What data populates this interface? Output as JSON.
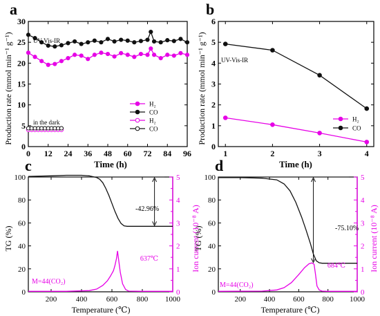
{
  "figure": {
    "panels": [
      "a",
      "b",
      "c",
      "d"
    ]
  },
  "colors": {
    "h2": "#e600e6",
    "co": "#111111",
    "ion": "#e600e6",
    "tg": "#111111",
    "axis": "#000000"
  },
  "chart_data": [
    {
      "panel": "a",
      "type": "line",
      "xlabel": "Time (h)",
      "ylabel": "Production rate (mmol min⁻¹ g⁻¹)",
      "xlim": [
        0,
        96
      ],
      "ylim": [
        0,
        30
      ],
      "xticks": [
        0,
        12,
        24,
        36,
        48,
        60,
        72,
        84,
        96
      ],
      "yticks": [
        0,
        5,
        10,
        15,
        20,
        25,
        30
      ],
      "annotations": [
        "UV-Vis-IR",
        "in the dark"
      ],
      "legend": {
        "position": "right",
        "entries": [
          {
            "label": "H₂",
            "marker": "filled-circle",
            "color": "#e600e6"
          },
          {
            "label": "CO",
            "marker": "filled-circle",
            "color": "#111111"
          },
          {
            "label": "H₂",
            "marker": "open-circle",
            "color": "#e600e6"
          },
          {
            "label": "CO",
            "marker": "open-circle",
            "color": "#111111"
          }
        ]
      },
      "series": [
        {
          "name": "CO",
          "condition": "UV-Vis-IR",
          "marker": "filled-circle",
          "color": "#111111",
          "x": [
            0,
            4,
            8,
            12,
            16,
            20,
            24,
            28,
            32,
            36,
            40,
            44,
            48,
            52,
            56,
            60,
            64,
            68,
            72,
            74,
            76,
            80,
            84,
            88,
            92,
            96
          ],
          "y": [
            26.8,
            26.0,
            25.0,
            24.2,
            24.0,
            24.3,
            24.8,
            25.2,
            24.6,
            25.0,
            25.4,
            25.0,
            25.8,
            25.2,
            25.6,
            25.4,
            25.0,
            25.3,
            25.6,
            27.5,
            25.2,
            25.0,
            25.5,
            25.3,
            25.8,
            25.0
          ]
        },
        {
          "name": "H₂",
          "condition": "UV-Vis-IR",
          "marker": "filled-circle",
          "color": "#e600e6",
          "x": [
            0,
            4,
            8,
            12,
            16,
            20,
            24,
            28,
            32,
            36,
            40,
            44,
            48,
            52,
            56,
            60,
            64,
            68,
            72,
            74,
            76,
            80,
            84,
            88,
            92,
            96
          ],
          "y": [
            22.5,
            21.5,
            20.5,
            19.6,
            19.8,
            20.5,
            21.2,
            22.0,
            21.8,
            21.0,
            22.0,
            22.5,
            22.2,
            21.6,
            22.4,
            22.0,
            21.5,
            22.2,
            22.0,
            23.5,
            22.0,
            21.2,
            22.0,
            21.8,
            22.4,
            22.0
          ]
        },
        {
          "name": "H₂",
          "condition": "in the dark",
          "marker": "open-circle",
          "color": "#e600e6",
          "x": [
            0,
            2,
            4,
            6,
            8,
            10,
            12,
            14,
            16,
            18,
            20
          ],
          "y": [
            4.0,
            4.0,
            4.0,
            4.0,
            4.0,
            4.0,
            4.0,
            4.0,
            4.0,
            4.0,
            4.0
          ]
        },
        {
          "name": "CO",
          "condition": "in the dark",
          "marker": "open-circle",
          "color": "#111111",
          "x": [
            0,
            2,
            4,
            6,
            8,
            10,
            12,
            14,
            16,
            18,
            20
          ],
          "y": [
            4.4,
            4.4,
            4.4,
            4.4,
            4.4,
            4.4,
            4.4,
            4.4,
            4.4,
            4.4,
            4.4
          ]
        }
      ]
    },
    {
      "panel": "b",
      "type": "line",
      "xlabel": "Time (h)",
      "ylabel": "Production rate (mmol min⁻¹ g⁻¹)",
      "xlim": [
        0.85,
        4.15
      ],
      "ylim": [
        0,
        6
      ],
      "xticks": [
        1,
        2,
        3,
        4
      ],
      "yticks": [
        0,
        1,
        2,
        3,
        4,
        5,
        6
      ],
      "annotations": [
        "UV-Vis-IR"
      ],
      "legend": {
        "position": "lower-right",
        "entries": [
          {
            "label": "H₂",
            "marker": "filled-circle",
            "color": "#e600e6"
          },
          {
            "label": "CO",
            "marker": "filled-circle",
            "color": "#111111"
          }
        ]
      },
      "series": [
        {
          "name": "CO",
          "marker": "filled-circle",
          "color": "#111111",
          "x": [
            1,
            2,
            3,
            4
          ],
          "y": [
            4.92,
            4.62,
            3.42,
            1.82
          ]
        },
        {
          "name": "H₂",
          "marker": "filled-circle",
          "color": "#e600e6",
          "x": [
            1,
            2,
            3,
            4
          ],
          "y": [
            1.38,
            1.05,
            0.65,
            0.22
          ]
        }
      ]
    },
    {
      "panel": "c",
      "type": "line",
      "xlabel": "Temperature (℃)",
      "ylabel": "TG (%)",
      "ylabel_right": "Ion current (10⁻⁸ A)",
      "xlim": [
        50,
        1000
      ],
      "ylim": [
        0,
        100
      ],
      "ylim_right": [
        0,
        5
      ],
      "xticks": [
        200,
        400,
        600,
        800,
        1000
      ],
      "yticks": [
        0,
        20,
        40,
        60,
        80,
        100
      ],
      "yticks_right": [
        0,
        0.5,
        1,
        1.5,
        2,
        2.5,
        3,
        3.5,
        4,
        4.5,
        5
      ],
      "yticklabels_right": [
        "0",
        "",
        "1",
        "",
        "2",
        "",
        "3",
        "",
        "4",
        "",
        "5"
      ],
      "annotations": [
        "-42.96%",
        "637℃",
        "M=44(CO₂)"
      ],
      "peak": {
        "x": 637,
        "label": "637℃"
      },
      "mass_loss": {
        "label": "-42.96%",
        "x": 880,
        "from": 100,
        "to": 57.04
      },
      "series": [
        {
          "name": "TG",
          "axis": "left",
          "color": "#111111",
          "x": [
            50,
            200,
            300,
            400,
            450,
            500,
            520,
            540,
            560,
            580,
            600,
            620,
            640,
            660,
            680,
            700,
            1000
          ],
          "y": [
            100.5,
            101.0,
            101.5,
            101.5,
            101.0,
            99.5,
            98.0,
            95.0,
            90.0,
            84.0,
            77.0,
            70.0,
            64.0,
            59.5,
            57.5,
            57.04,
            57.04
          ]
        },
        {
          "name": "M=44(CO₂)",
          "axis": "right",
          "color": "#e600e6",
          "x": [
            50,
            300,
            450,
            500,
            540,
            570,
            590,
            610,
            620,
            630,
            637,
            645,
            655,
            670,
            690,
            710,
            800,
            1000
          ],
          "y": [
            0.02,
            0.02,
            0.05,
            0.12,
            0.28,
            0.48,
            0.68,
            0.92,
            1.15,
            1.45,
            1.78,
            1.35,
            0.85,
            0.35,
            0.1,
            0.03,
            0.02,
            0.02
          ]
        }
      ]
    },
    {
      "panel": "d",
      "type": "line",
      "xlabel": "Temperature (℃)",
      "ylabel": "TG (%)",
      "ylabel_right": "Ion current (10⁻⁸ A)",
      "xlim": [
        50,
        1000
      ],
      "ylim": [
        0,
        100
      ],
      "ylim_right": [
        0,
        5
      ],
      "xticks": [
        200,
        400,
        600,
        800,
        1000
      ],
      "yticks": [
        0,
        20,
        40,
        60,
        80,
        100
      ],
      "yticks_right": [
        0,
        0.5,
        1,
        1.5,
        2,
        2.5,
        3,
        3.5,
        4,
        4.5,
        5
      ],
      "yticklabels_right": [
        "0",
        "",
        "1",
        "",
        "2",
        "",
        "3",
        "",
        "4",
        "",
        "5"
      ],
      "annotations": [
        "-75.10%",
        "684℃",
        "M=44(CO₂)"
      ],
      "peak": {
        "x": 684,
        "label": "684℃"
      },
      "mass_loss": {
        "label": "-75.10%",
        "x": 700,
        "from": 100,
        "to": 24.9
      },
      "series": [
        {
          "name": "TG",
          "axis": "left",
          "color": "#111111",
          "x": [
            50,
            200,
            350,
            450,
            500,
            540,
            580,
            620,
            650,
            680,
            700,
            720,
            740,
            760,
            1000
          ],
          "y": [
            99.5,
            99.5,
            99.0,
            97.5,
            94.0,
            88.0,
            78.0,
            65.0,
            54.0,
            42.0,
            33.0,
            27.0,
            25.3,
            24.9,
            24.9
          ]
        },
        {
          "name": "M=44(CO₂)",
          "axis": "right",
          "color": "#e600e6",
          "x": [
            50,
            350,
            450,
            500,
            550,
            600,
            640,
            670,
            690,
            705,
            715,
            725,
            740,
            760,
            800,
            1000
          ],
          "y": [
            0.02,
            0.03,
            0.08,
            0.18,
            0.4,
            0.75,
            1.05,
            1.22,
            1.26,
            1.2,
            0.75,
            0.25,
            0.08,
            0.03,
            0.02,
            0.02
          ]
        }
      ]
    }
  ]
}
